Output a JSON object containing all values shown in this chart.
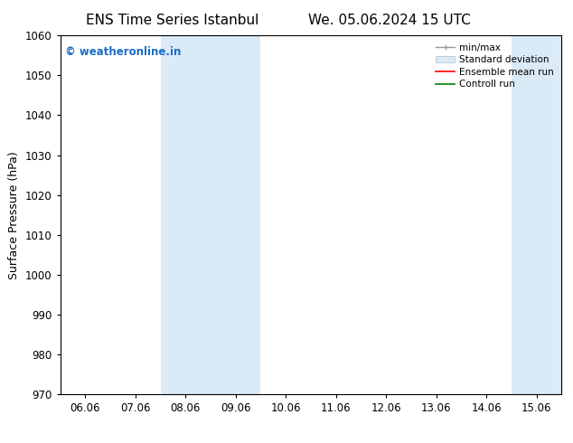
{
  "title1": "ENS Time Series Istanbul",
  "title2": "We. 05.06.2024 15 UTC",
  "ylabel": "Surface Pressure (hPa)",
  "ylim": [
    970,
    1060
  ],
  "yticks": [
    970,
    980,
    990,
    1000,
    1010,
    1020,
    1030,
    1040,
    1050,
    1060
  ],
  "xtick_labels": [
    "06.06",
    "07.06",
    "08.06",
    "09.06",
    "10.06",
    "11.06",
    "12.06",
    "13.06",
    "14.06",
    "15.06"
  ],
  "shaded_bands": [
    {
      "xstart": 2.0,
      "xend": 3.0,
      "color": "#dbeaf5"
    },
    {
      "xstart": 3.0,
      "xend": 4.0,
      "color": "#dbeaf5"
    },
    {
      "xstart": 9.0,
      "xend": 10.0,
      "color": "#dbeaf5"
    }
  ],
  "watermark": "© weatheronline.in",
  "watermark_color": "#1a6fc4",
  "legend_entries": [
    {
      "label": "min/max",
      "color": "#aaaaaa",
      "lw": 1.0
    },
    {
      "label": "Standard deviation",
      "color": "#d0e8f8",
      "lw": 8
    },
    {
      "label": "Ensemble mean run",
      "color": "red",
      "lw": 1.2
    },
    {
      "label": "Controll run",
      "color": "green",
      "lw": 1.2
    }
  ],
  "bg_color": "#ffffff",
  "grid_color": "#cccccc",
  "spine_color": "#000000",
  "title_fontsize": 11,
  "axis_label_fontsize": 9,
  "tick_fontsize": 8.5
}
